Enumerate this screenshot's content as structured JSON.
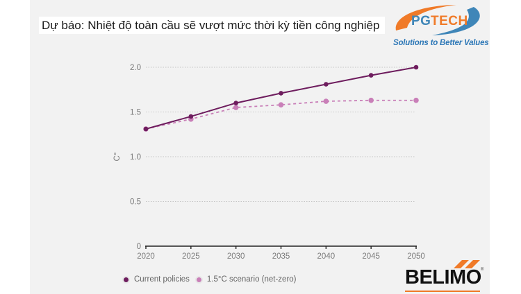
{
  "title": "Dự báo: Nhiệt độ toàn cầu sẽ vượt mức thời kỳ tiền công nghiệp",
  "logos": {
    "pgtech": {
      "text_pg": "PG",
      "text_tech": "TECH",
      "tagline": "Solutions to Better Values",
      "colors": {
        "orange": "#f07a28",
        "blue": "#3f86b8"
      }
    },
    "belimo": {
      "text": "BELIMO",
      "registered": "®",
      "accent": "#f07a28"
    }
  },
  "chart_data": {
    "type": "line",
    "title": "Dự báo: Nhiệt độ toàn cầu sẽ vượt mức thời kỳ tiền công nghiệp",
    "xlabel": "",
    "ylabel": "C°",
    "x": [
      2020,
      2025,
      2030,
      2035,
      2040,
      2045,
      2050
    ],
    "x_tick_labels": [
      "2020",
      "2025",
      "2030",
      "2035",
      "2040",
      "2045",
      "2050"
    ],
    "y_tick_labels": [
      "0",
      "0.5",
      "1.0",
      "1.5",
      "2.0"
    ],
    "ylim": [
      0,
      2.0
    ],
    "grid": "horizontal dotted",
    "legend_position": "bottom-left",
    "series": [
      {
        "name": "Current policies",
        "style": "solid",
        "color": "#6e1d5e",
        "values": [
          1.31,
          1.45,
          1.6,
          1.71,
          1.81,
          1.91,
          2.0
        ]
      },
      {
        "name": "1.5°C scenario (net-zero)",
        "style": "dashed",
        "color": "#c97fb8",
        "values": [
          1.31,
          1.42,
          1.55,
          1.58,
          1.62,
          1.63,
          1.63
        ]
      }
    ]
  },
  "legend": {
    "items": [
      {
        "label": "Current policies",
        "color": "#6e1d5e"
      },
      {
        "label": "1.5°C scenario (net-zero)",
        "color": "#c97fb8"
      }
    ]
  }
}
